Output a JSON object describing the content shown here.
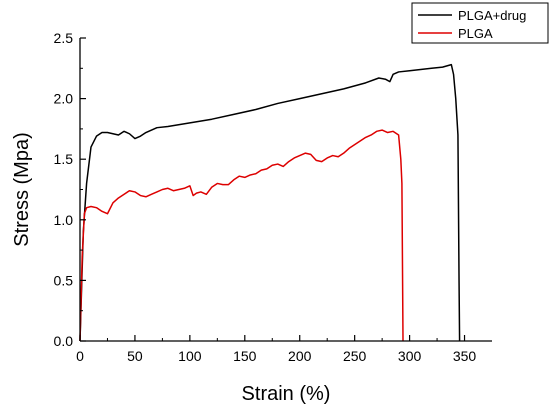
{
  "chart_data": {
    "type": "line",
    "xlabel": "Strain (%)",
    "ylabel": "Stress (Mpa)",
    "xlim": [
      0,
      375
    ],
    "ylim": [
      0,
      2.5
    ],
    "xticks": [
      0,
      50,
      100,
      150,
      200,
      250,
      300,
      350
    ],
    "yticks": [
      0.0,
      0.5,
      1.0,
      1.5,
      2.0,
      2.5
    ],
    "x_tick_labels": [
      "0",
      "50",
      "100",
      "150",
      "200",
      "250",
      "300",
      "350"
    ],
    "y_tick_labels": [
      "0.0",
      "0.5",
      "1.0",
      "1.5",
      "2.0",
      "2.5"
    ],
    "legend": {
      "position": "top-right"
    },
    "grid": false,
    "series": [
      {
        "name": "PLGA+drug",
        "color": "#000000",
        "x": [
          0,
          3,
          6,
          10,
          15,
          20,
          25,
          30,
          35,
          40,
          45,
          50,
          55,
          60,
          70,
          80,
          100,
          120,
          140,
          160,
          180,
          200,
          220,
          240,
          260,
          272,
          278,
          282,
          285,
          290,
          300,
          310,
          320,
          330,
          338,
          340,
          342,
          344,
          345,
          345.5
        ],
        "y": [
          0,
          0.9,
          1.3,
          1.6,
          1.69,
          1.72,
          1.72,
          1.71,
          1.7,
          1.73,
          1.71,
          1.67,
          1.69,
          1.72,
          1.76,
          1.77,
          1.8,
          1.83,
          1.87,
          1.91,
          1.96,
          2.0,
          2.04,
          2.08,
          2.13,
          2.17,
          2.16,
          2.14,
          2.2,
          2.22,
          2.23,
          2.24,
          2.25,
          2.26,
          2.28,
          2.2,
          2.0,
          1.7,
          0.5,
          0.0
        ]
      },
      {
        "name": "PLGA",
        "color": "#dd0000",
        "x": [
          0,
          2,
          4,
          6,
          10,
          15,
          20,
          25,
          30,
          35,
          40,
          45,
          50,
          55,
          60,
          65,
          70,
          75,
          80,
          85,
          90,
          95,
          100,
          103,
          106,
          110,
          115,
          120,
          125,
          130,
          135,
          140,
          145,
          150,
          155,
          160,
          165,
          170,
          175,
          180,
          185,
          190,
          195,
          200,
          205,
          210,
          215,
          220,
          225,
          230,
          235,
          240,
          245,
          250,
          255,
          260,
          265,
          270,
          275,
          280,
          285,
          290,
          292,
          293,
          294
        ],
        "y": [
          0,
          0.7,
          1.05,
          1.1,
          1.11,
          1.1,
          1.07,
          1.05,
          1.14,
          1.18,
          1.21,
          1.24,
          1.23,
          1.2,
          1.19,
          1.21,
          1.23,
          1.25,
          1.26,
          1.24,
          1.25,
          1.26,
          1.28,
          1.2,
          1.22,
          1.23,
          1.21,
          1.27,
          1.3,
          1.29,
          1.29,
          1.33,
          1.36,
          1.35,
          1.37,
          1.38,
          1.41,
          1.42,
          1.45,
          1.46,
          1.44,
          1.48,
          1.51,
          1.53,
          1.55,
          1.54,
          1.49,
          1.48,
          1.51,
          1.53,
          1.52,
          1.55,
          1.59,
          1.62,
          1.65,
          1.68,
          1.7,
          1.73,
          1.74,
          1.72,
          1.73,
          1.7,
          1.5,
          1.3,
          0.0
        ]
      }
    ]
  }
}
